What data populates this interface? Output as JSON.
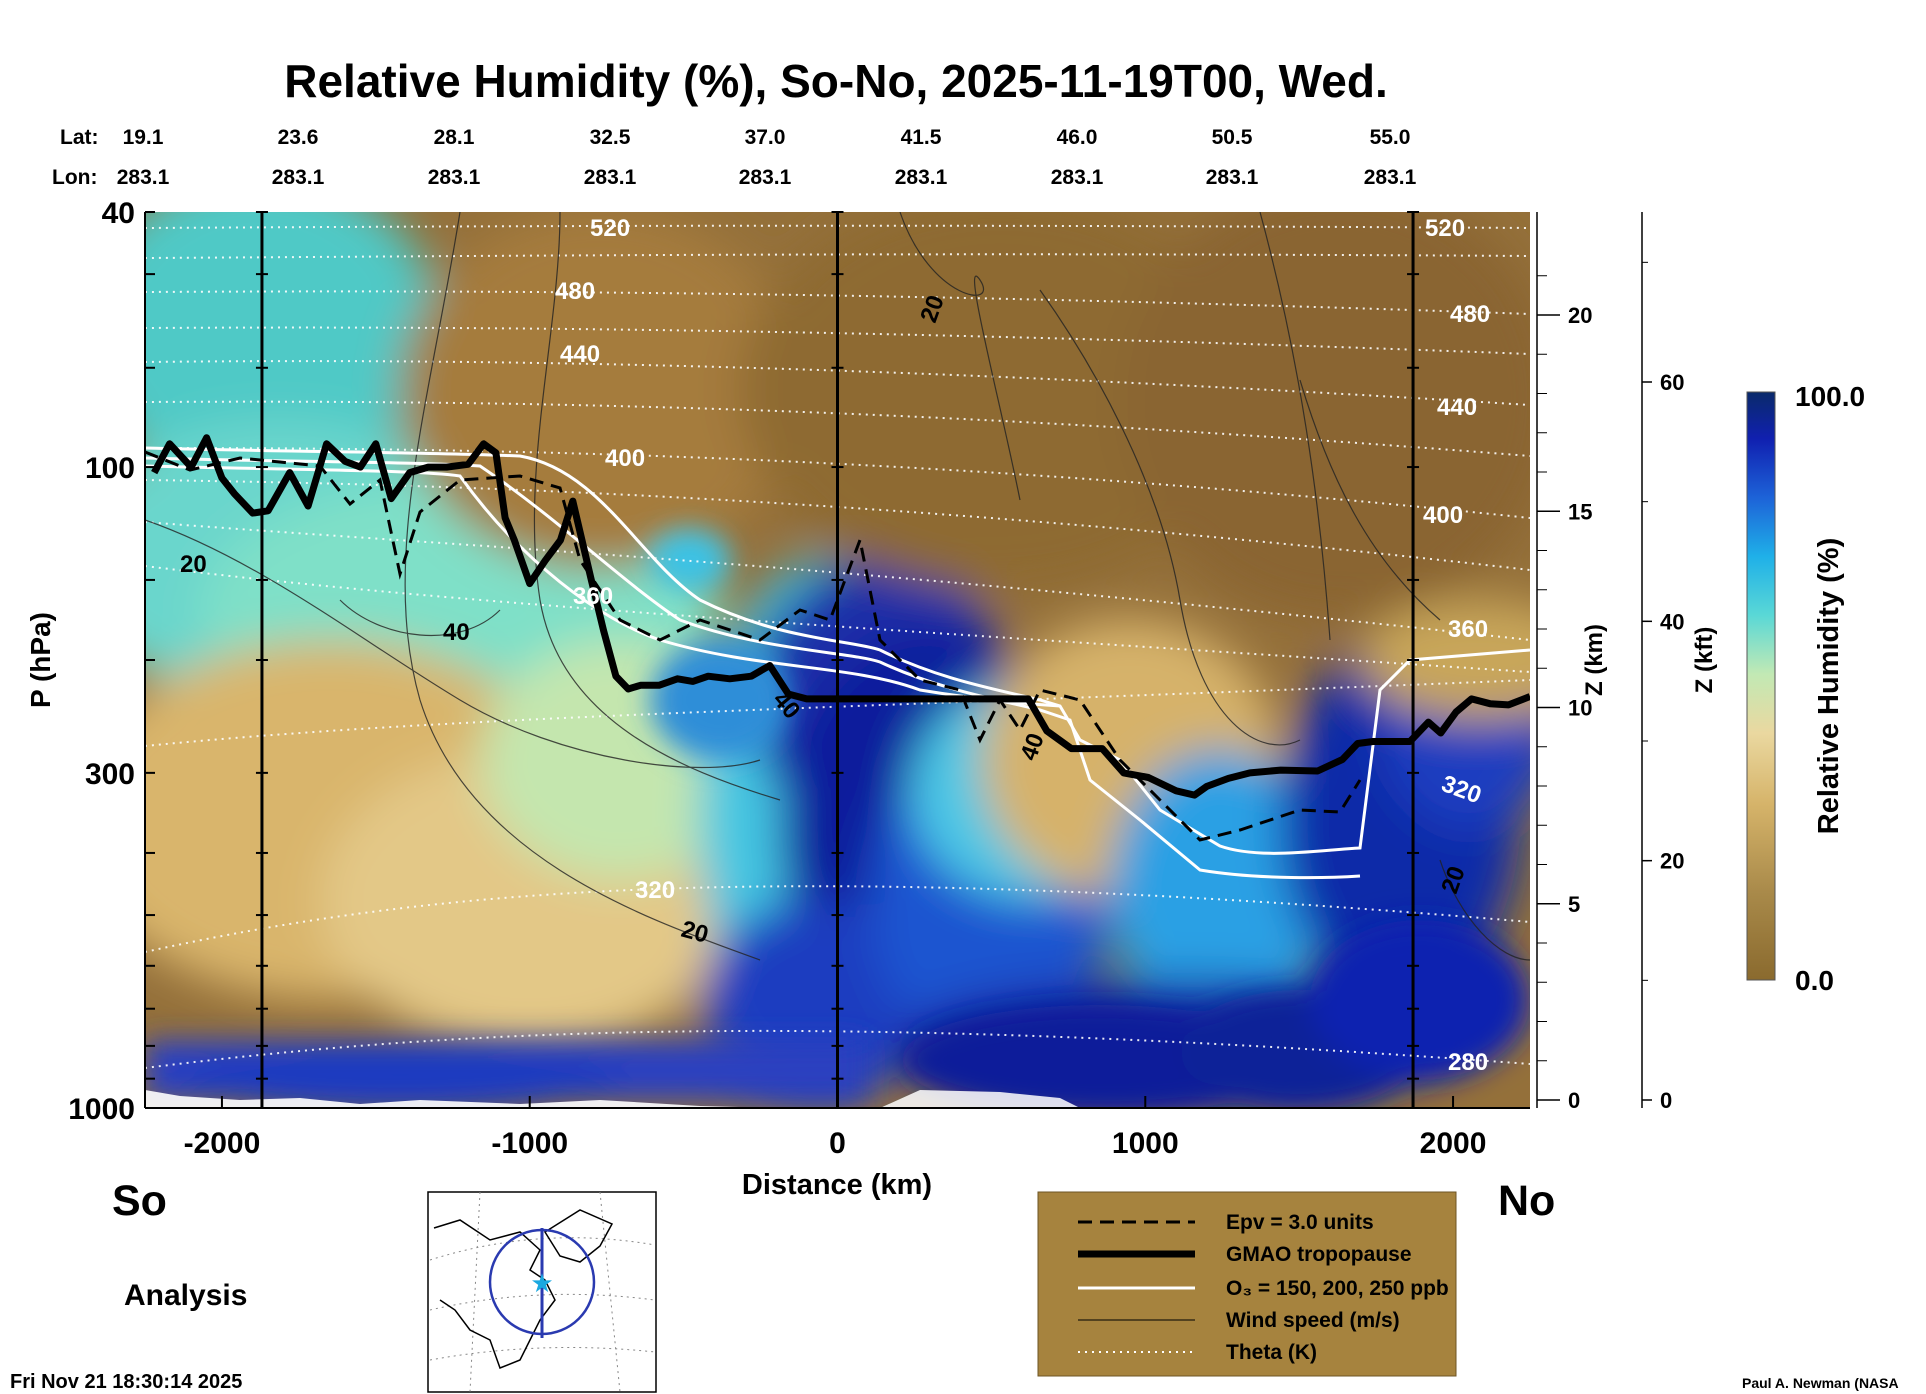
{
  "chart_data": {
    "type": "heatmap",
    "title": "Relative Humidity (%), So-No, 2025-11-19T00, Wed.",
    "xlabel": "Distance (km)",
    "ylabel": "P (hPa)",
    "y2label": "Z (km)",
    "y3label": "Z (kft)",
    "xlim": [
      -2250,
      2250
    ],
    "ylim_hpa": [
      1000,
      40
    ],
    "x_ticks": [
      -2000,
      -1000,
      0,
      1000,
      2000
    ],
    "x_tick_labels": [
      "-2000",
      "-1000",
      "0",
      "1000",
      "2000"
    ],
    "p_ticks": [
      1000,
      300,
      100,
      40
    ],
    "p_tick_labels": [
      "1000",
      "300",
      "100",
      "40"
    ],
    "z_km_ticks": [
      0,
      5,
      10,
      15,
      20
    ],
    "z_km_labels": [
      "0",
      "5",
      "10",
      "15",
      "20"
    ],
    "z_kft_ticks": [
      0,
      20,
      40,
      60
    ],
    "z_kft_labels": [
      "0",
      "20",
      "40",
      "60"
    ],
    "lat_header": "Lat:",
    "lon_header": "Lon:",
    "lat_labels": [
      "19.1",
      "23.6",
      "28.1",
      "32.5",
      "37.0",
      "41.5",
      "46.0",
      "50.5",
      "55.0"
    ],
    "lon_labels": [
      "283.1",
      "283.1",
      "283.1",
      "283.1",
      "283.1",
      "283.1",
      "283.1",
      "283.1",
      "283.1"
    ],
    "south_label": "So",
    "north_label": "No",
    "panel_label": "Analysis",
    "colorbar": {
      "label": "Relative Humidity (%)",
      "min": 0.0,
      "max": 100.0,
      "min_label": "0.0",
      "max_label": "100.0"
    },
    "vertical_lines_km": [
      -1870,
      0,
      1870
    ],
    "tropopause": {
      "x": [
        -2220,
        -2170,
        -2100,
        -2050,
        -2000,
        -1960,
        -1900,
        -1850,
        -1780,
        -1720,
        -1660,
        -1600,
        -1550,
        -1500,
        -1450,
        -1390,
        -1330,
        -1270,
        -1200,
        -1150,
        -1110,
        -1080,
        -1050,
        -1000,
        -950,
        -900,
        -860,
        -800,
        -760,
        -720,
        -680,
        -640,
        -580,
        -520,
        -470,
        -420,
        -350,
        -280,
        -220,
        -160,
        -100,
        -40,
        0,
        150,
        300,
        450,
        620,
        680,
        760,
        860,
        930,
        1010,
        1100,
        1160,
        1200,
        1270,
        1340,
        1440,
        1560,
        1640,
        1690,
        1740,
        1800,
        1860,
        1920,
        1960,
        2010,
        2060,
        2120,
        2180,
        2250
      ],
      "p": [
        102,
        92,
        100,
        90,
        104,
        110,
        118,
        117,
        102,
        115,
        92,
        98,
        100,
        92,
        112,
        102,
        100,
        100,
        99,
        92,
        95,
        120,
        130,
        152,
        140,
        130,
        113,
        150,
        180,
        212,
        222,
        219,
        219,
        214,
        216,
        212,
        214,
        212,
        204,
        226,
        230,
        230,
        230,
        230,
        230,
        230,
        230,
        258,
        275,
        275,
        300,
        305,
        320,
        325,
        315,
        306,
        300,
        297,
        298,
        286,
        270,
        268,
        268,
        268,
        250,
        260,
        241,
        230,
        234,
        235,
        228
      ]
    },
    "theta_levels_K": [
      280,
      320,
      360,
      400,
      440,
      480,
      520
    ],
    "theta_labels": [
      "280",
      "320",
      "360",
      "400",
      "440",
      "480",
      "520"
    ],
    "wind_labels": [
      "20",
      "40",
      "20",
      "20",
      "40",
      "40",
      "20"
    ],
    "legend": [
      {
        "style": "dashed",
        "label": "Epv = 3.0 units"
      },
      {
        "style": "thick",
        "label": "GMAO tropopause"
      },
      {
        "style": "white",
        "label": "O₃ = 150, 200, 250 ppb"
      },
      {
        "style": "thin",
        "label": "Wind speed (m/s)"
      },
      {
        "style": "dotted",
        "label": "Theta (K)"
      }
    ],
    "timestamp": "Fri Nov 21 18:30:14 2025",
    "credit": "Paul A. Newman (NASA"
  }
}
